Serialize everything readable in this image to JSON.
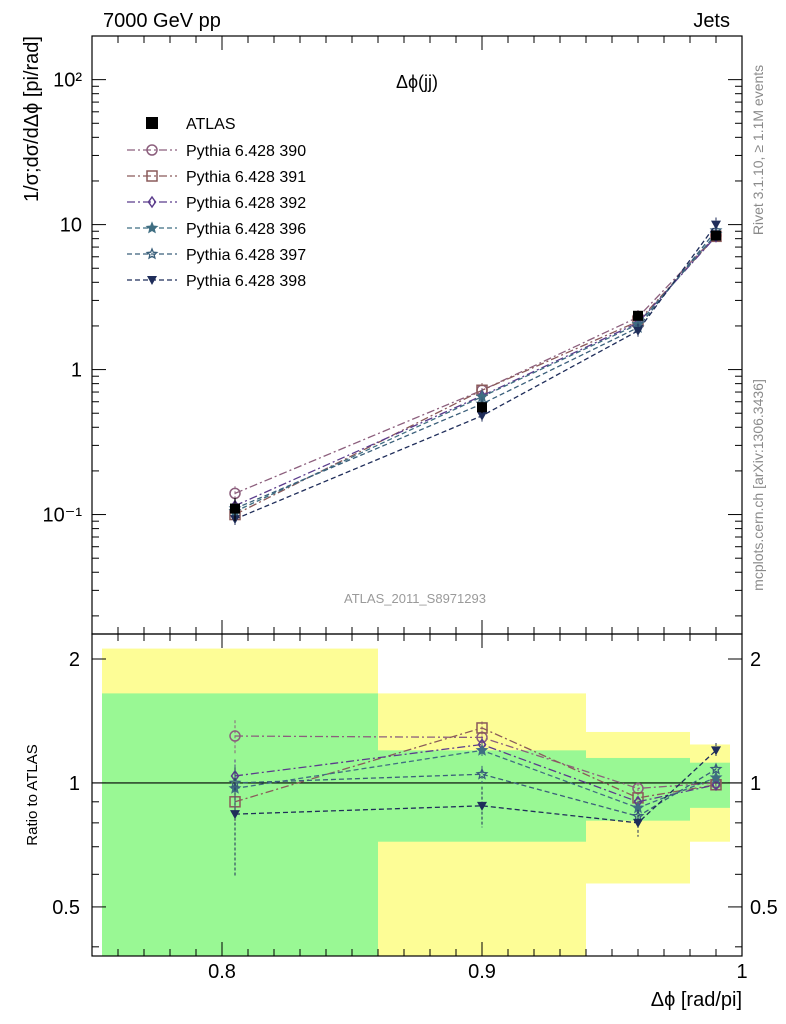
{
  "header": {
    "left": "7000 GeV pp",
    "right": "Jets"
  },
  "side_labels": {
    "rivet": "Rivet 3.1.10, ≥ 1.1M events",
    "mcplots": "mcplots.cern.ch [arXiv:1306.3436]"
  },
  "chart_data": [
    {
      "type": "line",
      "panel": "main",
      "title": "Δϕ(jj)",
      "watermark": "ATLAS_2011_S8971293",
      "ylabel": "1/σ;dσ/dΔϕ [pi/rad]",
      "yscale": "log",
      "xlim": [
        0.75,
        1.0
      ],
      "ylim": [
        0.015,
        200
      ],
      "ytick_labels": [
        "10⁻¹",
        "1",
        "10",
        "10²"
      ],
      "legend_position": "upper-left",
      "x": [
        0.805,
        0.9,
        0.96,
        0.99
      ],
      "atlas": {
        "name": "ATLAS",
        "color": "#000000",
        "values": [
          0.11,
          0.55,
          2.35,
          8.4
        ],
        "err_lo": [
          0.09,
          0.5,
          2.25,
          8.2
        ],
        "err_hi": [
          0.13,
          0.6,
          2.45,
          8.6
        ],
        "band1_x": [
          0.75,
          0.86,
          0.94,
          0.98,
          1.0
        ],
        "band_green_lo": [
          0.35,
          0.72,
          0.81,
          0.87
        ],
        "band_green_hi": [
          1.65,
          1.2,
          1.15,
          1.12
        ],
        "band_yellow_lo": [
          0.35,
          0.35,
          0.57,
          0.72
        ],
        "band_yellow_hi": [
          2.12,
          1.65,
          1.33,
          1.24
        ]
      },
      "series": [
        {
          "name": "Pythia 6.428 390",
          "color": "#8c5f7d",
          "dash": "8,3,2,3",
          "marker": "circle-open",
          "values": [
            0.14,
            0.72,
            2.3,
            8.4
          ]
        },
        {
          "name": "Pythia 6.428 391",
          "color": "#8a5a5a",
          "dash": "8,3,2,3",
          "marker": "square-open",
          "values": [
            0.1,
            0.72,
            2.15,
            8.3
          ]
        },
        {
          "name": "Pythia 6.428 392",
          "color": "#5b3c8c",
          "dash": "8,3,2,3",
          "marker": "diamond-open",
          "values": [
            0.115,
            0.66,
            2.1,
            8.3
          ]
        },
        {
          "name": "Pythia 6.428 396",
          "color": "#3f6e82",
          "dash": "5,3",
          "marker": "star-filled",
          "values": [
            0.105,
            0.65,
            2.05,
            8.6
          ]
        },
        {
          "name": "Pythia 6.428 397",
          "color": "#3a5f7a",
          "dash": "5,3",
          "marker": "star-open",
          "values": [
            0.11,
            0.58,
            1.95,
            9.1
          ]
        },
        {
          "name": "Pythia 6.428 398",
          "color": "#1f2d5a",
          "dash": "5,3",
          "marker": "triangle-down-filled",
          "values": [
            0.093,
            0.48,
            1.85,
            10.0
          ]
        }
      ]
    },
    {
      "type": "line",
      "panel": "ratio",
      "ylabel": "Ratio to ATLAS",
      "xlabel": "Δϕ [rad/pi]",
      "xlim": [
        0.75,
        1.0
      ],
      "ylim": [
        0.38,
        2.3
      ],
      "xtick_labels": [
        "0.8",
        "0.9",
        "1"
      ],
      "ytick_labels": [
        "0.5",
        "1",
        "2"
      ],
      "x": [
        0.805,
        0.9,
        0.96,
        0.99
      ],
      "series": [
        {
          "name": "Pythia 6.428 390",
          "values": [
            1.3,
            1.29,
            0.97,
            1.0
          ],
          "err": [
            0.12,
            0.05,
            0.03,
            0.02
          ]
        },
        {
          "name": "Pythia 6.428 391",
          "values": [
            0.9,
            1.36,
            0.92,
            0.99
          ],
          "err": [
            0.1,
            0.05,
            0.03,
            0.02
          ]
        },
        {
          "name": "Pythia 6.428 392",
          "values": [
            1.04,
            1.24,
            0.9,
            0.99
          ],
          "err": [
            0.1,
            0.05,
            0.03,
            0.02
          ]
        },
        {
          "name": "Pythia 6.428 396",
          "values": [
            0.97,
            1.2,
            0.87,
            1.03
          ],
          "err": [
            0.1,
            0.05,
            0.03,
            0.02
          ]
        },
        {
          "name": "Pythia 6.428 397",
          "values": [
            1.0,
            1.05,
            0.83,
            1.08
          ],
          "err": [
            0.1,
            0.05,
            0.03,
            0.02
          ]
        },
        {
          "name": "Pythia 6.428 398",
          "values": [
            0.84,
            0.88,
            0.8,
            1.2
          ],
          "err": [
            0.25,
            0.1,
            0.06,
            0.05
          ]
        }
      ]
    }
  ]
}
